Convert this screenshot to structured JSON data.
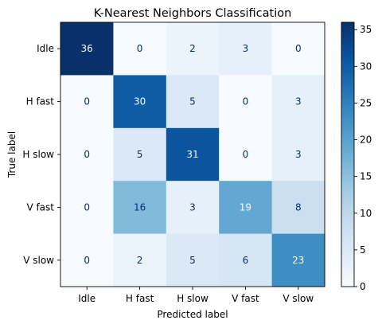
{
  "chart_data": {
    "type": "heatmap",
    "title": "K-Nearest Neighbors Classification",
    "xlabel": "Predicted label",
    "ylabel": "True label",
    "row_labels": [
      "Idle",
      "H fast",
      "H slow",
      "V fast",
      "V slow"
    ],
    "col_labels": [
      "Idle",
      "H fast",
      "H slow",
      "V fast",
      "V slow"
    ],
    "values": [
      [
        36,
        0,
        2,
        3,
        0
      ],
      [
        0,
        30,
        5,
        0,
        3
      ],
      [
        0,
        5,
        31,
        0,
        3
      ],
      [
        0,
        16,
        3,
        19,
        8
      ],
      [
        0,
        2,
        5,
        6,
        23
      ]
    ],
    "colormap": "Blues",
    "colorbar": {
      "min": 0,
      "max": 36,
      "ticks": [
        0,
        5,
        10,
        15,
        20,
        25,
        30,
        35
      ]
    },
    "grid": false
  }
}
